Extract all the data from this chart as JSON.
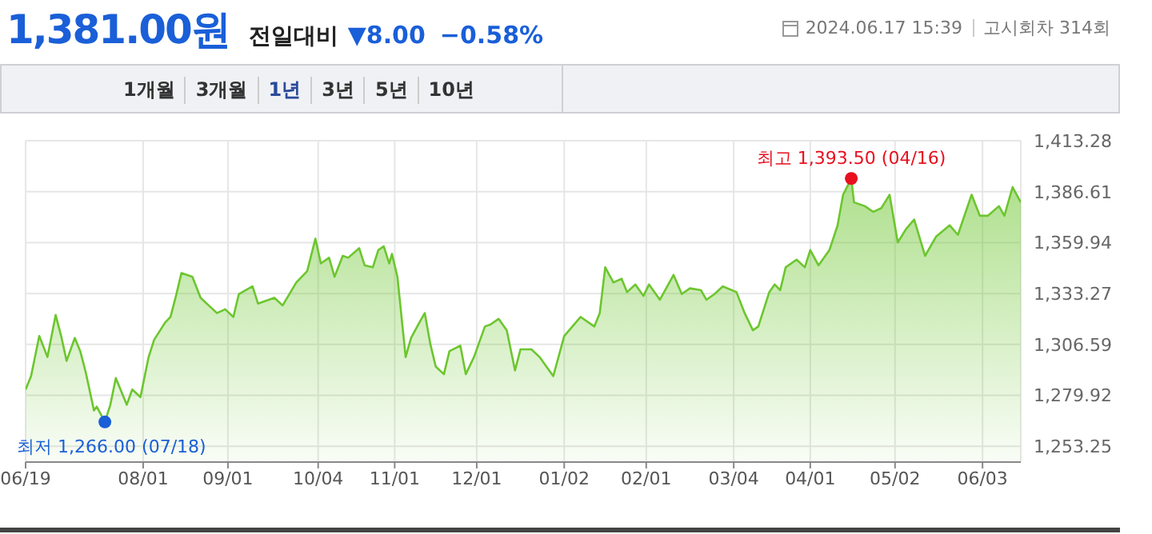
{
  "chart_data": {
    "type": "area",
    "title": "1,381.00원",
    "annotations": [
      "전일대비",
      "▼8.00",
      "−0.58%",
      "2024.06.17 15:39",
      "고시회차 314회",
      "1개월",
      "3개월",
      "1년",
      "3년",
      "5년",
      "10년",
      {
        "text": "최저 1,266.00 (07/18)",
        "x": "2023-07-18",
        "y": 1266.0
      },
      {
        "text": "최고 1,393.50 (04/16)",
        "x": "2024-04-16",
        "y": 1393.5
      }
    ],
    "x": [
      "2023-06-19",
      "2023-06-21",
      "2023-06-24",
      "2023-06-27",
      "2023-06-30",
      "2023-07-02",
      "2023-07-04",
      "2023-07-07",
      "2023-07-09",
      "2023-07-11",
      "2023-07-14",
      "2023-07-15",
      "2023-07-18",
      "2023-07-20",
      "2023-07-22",
      "2023-07-26",
      "2023-07-28",
      "2023-07-31",
      "2023-08-03",
      "2023-08-05",
      "2023-08-09",
      "2023-08-11",
      "2023-08-13",
      "2023-08-15",
      "2023-08-19",
      "2023-08-22",
      "2023-08-25",
      "2023-08-28",
      "2023-08-31",
      "2023-09-03",
      "2023-09-05",
      "2023-09-10",
      "2023-09-12",
      "2023-09-18",
      "2023-09-21",
      "2023-09-26",
      "2023-09-30",
      "2023-10-03",
      "2023-10-05",
      "2023-10-08",
      "2023-10-10",
      "2023-10-13",
      "2023-10-15",
      "2023-10-19",
      "2023-10-21",
      "2023-10-24",
      "2023-10-26",
      "2023-10-28",
      "2023-10-30",
      "2023-10-31",
      "2023-11-02",
      "2023-11-05",
      "2023-11-07",
      "2023-11-10",
      "2023-11-12",
      "2023-11-14",
      "2023-11-16",
      "2023-11-19",
      "2023-11-21",
      "2023-11-25",
      "2023-11-27",
      "2023-11-30",
      "2023-12-04",
      "2023-12-06",
      "2023-12-09",
      "2023-12-12",
      "2023-12-15",
      "2023-12-17",
      "2023-12-21",
      "2023-12-24",
      "2023-12-26",
      "2023-12-29",
      "2024-01-02",
      "2024-01-05",
      "2024-01-08",
      "2024-01-13",
      "2024-01-15",
      "2024-01-17",
      "2024-01-20",
      "2024-01-23",
      "2024-01-25",
      "2024-01-28",
      "2024-01-31",
      "2024-02-02",
      "2024-02-06",
      "2024-02-11",
      "2024-02-14",
      "2024-02-17",
      "2024-02-21",
      "2024-02-23",
      "2024-02-26",
      "2024-02-29",
      "2024-03-05",
      "2024-03-08",
      "2024-03-11",
      "2024-03-13",
      "2024-03-17",
      "2024-03-19",
      "2024-03-21",
      "2024-03-23",
      "2024-03-27",
      "2024-03-30",
      "2024-04-01",
      "2024-04-04",
      "2024-04-08",
      "2024-04-11",
      "2024-04-13",
      "2024-04-16",
      "2024-04-17",
      "2024-04-21",
      "2024-04-24",
      "2024-04-27",
      "2024-04-30",
      "2024-05-03",
      "2024-05-06",
      "2024-05-09",
      "2024-05-13",
      "2024-05-17",
      "2024-05-22",
      "2024-05-25",
      "2024-05-30",
      "2024-06-02",
      "2024-06-05",
      "2024-06-09",
      "2024-06-11",
      "2024-06-14",
      "2024-06-17"
    ],
    "series": [
      {
        "color": "#6cc62e",
        "values": [
          1283,
          1290,
          1311,
          1300,
          1322,
          1311,
          1298,
          1310,
          1303,
          1292,
          1272,
          1274,
          1266,
          1275,
          1289,
          1275,
          1283,
          1279,
          1300,
          1309,
          1318,
          1321,
          1332,
          1344,
          1342,
          1331,
          1327,
          1323,
          1325,
          1321,
          1333,
          1337,
          1328,
          1331,
          1327,
          1339,
          1345,
          1362,
          1349,
          1352,
          1342,
          1353,
          1352,
          1357,
          1348,
          1347,
          1356,
          1358,
          1349,
          1354,
          1342,
          1300,
          1310,
          1318,
          1323,
          1307,
          1295,
          1291,
          1303,
          1306,
          1291,
          1300,
          1316,
          1317,
          1320,
          1314,
          1293,
          1304,
          1304,
          1300,
          1296,
          1290,
          1311,
          1316,
          1321,
          1316,
          1323,
          1347,
          1339,
          1341,
          1334,
          1338,
          1332,
          1338,
          1330,
          1343,
          1333,
          1336,
          1335,
          1330,
          1333,
          1337,
          1334,
          1323,
          1314,
          1316,
          1334,
          1338,
          1335,
          1347,
          1351,
          1347,
          1356,
          1348,
          1356,
          1369,
          1385,
          1393.5,
          1381,
          1379,
          1376,
          1378,
          1385,
          1360,
          1367,
          1372,
          1353,
          1363,
          1369,
          1364,
          1385,
          1374,
          1374,
          1379,
          1374,
          1389,
          1381
        ]
      }
    ],
    "xlim": [
      "2023-06-19",
      "2024-06-17"
    ],
    "xticks": [
      {
        "value": "2023-06-19",
        "label": "06/19"
      },
      {
        "value": "2023-08-01",
        "label": "08/01"
      },
      {
        "value": "2023-09-01",
        "label": "09/01"
      },
      {
        "value": "2023-10-04",
        "label": "10/04"
      },
      {
        "value": "2023-11-01",
        "label": "11/01"
      },
      {
        "value": "2023-12-01",
        "label": "12/01"
      },
      {
        "value": "2024-01-02",
        "label": "01/02"
      },
      {
        "value": "2024-02-01",
        "label": "02/01"
      },
      {
        "value": "2024-03-04",
        "label": "03/04"
      },
      {
        "value": "2024-04-01",
        "label": "04/01"
      },
      {
        "value": "2024-05-02",
        "label": "05/02"
      },
      {
        "value": "2024-06-03",
        "label": "06/03"
      }
    ],
    "ylim": [
      1245,
      1413.28
    ],
    "yticks": [
      {
        "value": 1253.25,
        "label": "1,253.25"
      },
      {
        "value": 1279.92,
        "label": "1,279.92"
      },
      {
        "value": 1306.59,
        "label": "1,306.59"
      },
      {
        "value": 1333.27,
        "label": "1,333.27"
      },
      {
        "value": 1359.94,
        "label": "1,359.94"
      },
      {
        "value": 1386.61,
        "label": "1,386.61"
      },
      {
        "value": 1413.28,
        "label": "1,413.28"
      }
    ],
    "grid": true,
    "legend": false
  }
}
